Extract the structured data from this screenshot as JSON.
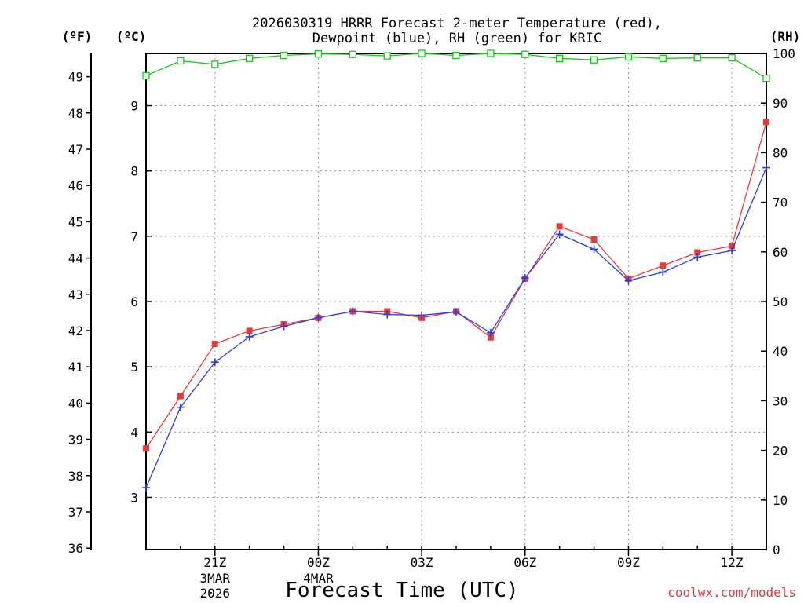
{
  "chart_data": {
    "type": "line",
    "title_line1": "2026030319 HRRR Forecast 2-meter Temperature (red),",
    "title_line2": "Dewpoint (blue), RH (green) for KRIC",
    "xlabel": "Forecast Time (UTC)",
    "watermark": "coolwx.com/models",
    "left_outer_unit": "(ºF)",
    "left_inner_unit": "(ºC)",
    "right_unit": "(RH)",
    "x_ticks": [
      {
        "hour": 2,
        "label": "21Z",
        "sub1": "3MAR",
        "sub2": "2026"
      },
      {
        "hour": 5,
        "label": "00Z",
        "sub1": "4MAR",
        "sub2": ""
      },
      {
        "hour": 8,
        "label": "03Z",
        "sub1": "",
        "sub2": ""
      },
      {
        "hour": 11,
        "label": "06Z",
        "sub1": "",
        "sub2": ""
      },
      {
        "hour": 14,
        "label": "09Z",
        "sub1": "",
        "sub2": ""
      },
      {
        "hour": 17,
        "label": "12Z",
        "sub1": "",
        "sub2": ""
      }
    ],
    "xlim": [
      0,
      18
    ],
    "celsius_ylim": [
      2.2,
      9.8
    ],
    "celsius_ticks": [
      "3",
      "4",
      "5",
      "6",
      "7",
      "8",
      "9"
    ],
    "fahrenheit_ticks": [
      "36",
      "37",
      "38",
      "39",
      "40",
      "41",
      "42",
      "43",
      "44",
      "45",
      "46",
      "47",
      "48",
      "49"
    ],
    "rh_ticks": [
      "0",
      "10",
      "20",
      "30",
      "40",
      "50",
      "60",
      "70",
      "80",
      "90",
      "100"
    ],
    "rh_ylim": [
      0,
      100
    ],
    "grid": true,
    "colors": {
      "temperature": "#e83a3a",
      "dewpoint": "#2b3fe0",
      "rh": "#16c816",
      "watermark": "#e03a3a"
    },
    "series": [
      {
        "key": "temperature",
        "unit": "C",
        "values": [
          3.75,
          4.55,
          5.35,
          5.55,
          5.65,
          5.75,
          5.85,
          5.85,
          5.75,
          5.85,
          5.45,
          6.35,
          7.15,
          6.95,
          6.35,
          6.55,
          6.75,
          6.85,
          8.75
        ]
      },
      {
        "key": "dewpoint",
        "unit": "C",
        "values": [
          3.15,
          4.38,
          5.07,
          5.46,
          5.62,
          5.75,
          5.85,
          5.8,
          5.79,
          5.84,
          5.52,
          6.36,
          7.03,
          6.8,
          6.32,
          6.45,
          6.68,
          6.78,
          8.05
        ]
      },
      {
        "key": "rh",
        "unit": "%",
        "values": [
          95.5,
          98.5,
          97.8,
          99.0,
          99.6,
          99.9,
          99.8,
          99.5,
          100.0,
          99.6,
          100.0,
          99.8,
          99.0,
          98.7,
          99.3,
          99.0,
          99.1,
          99.1,
          95.0
        ]
      }
    ]
  }
}
